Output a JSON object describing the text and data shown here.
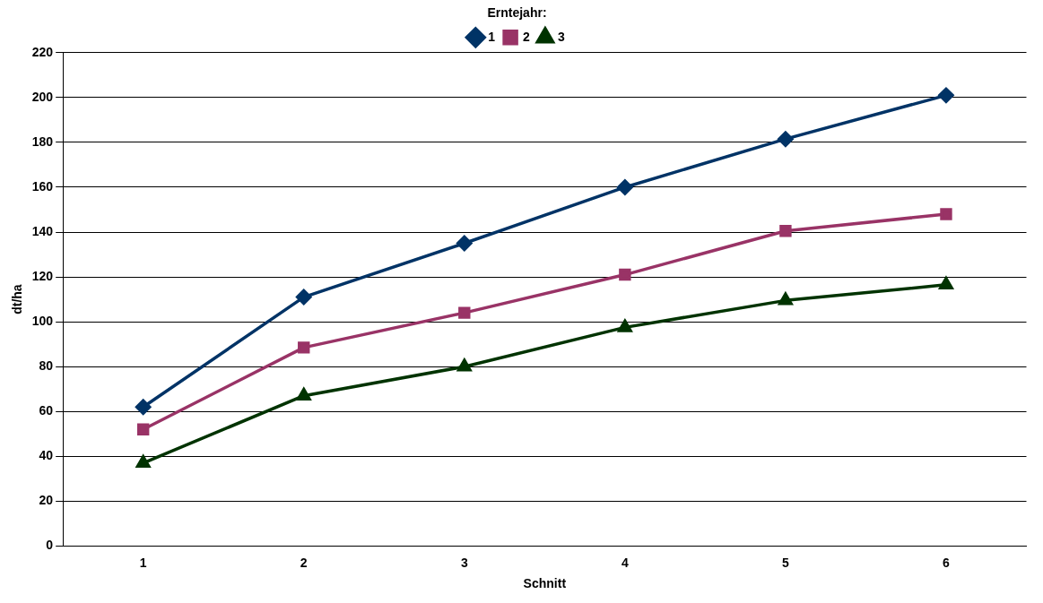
{
  "chart_data": {
    "type": "line",
    "xlabel": "Schnitt",
    "ylabel": "dt/ha",
    "legend_title": "Erntejahr:",
    "legend": "top",
    "grid": "y",
    "categories": [
      "1",
      "2",
      "3",
      "4",
      "5",
      "6"
    ],
    "ylim": [
      0,
      220
    ],
    "yticks": [
      0,
      20,
      40,
      60,
      80,
      100,
      120,
      140,
      160,
      180,
      200,
      220
    ],
    "series": [
      {
        "name": "1",
        "color": "#003366",
        "marker": "diamond",
        "values": [
          62,
          111,
          135,
          160,
          181.5,
          201
        ]
      },
      {
        "name": "2",
        "color": "#993366",
        "marker": "square",
        "values": [
          52,
          88.5,
          104,
          121,
          140.5,
          148
        ]
      },
      {
        "name": "3",
        "color": "#003300",
        "marker": "triangle",
        "values": [
          37,
          67,
          80,
          97.5,
          109.5,
          116.5
        ]
      }
    ]
  }
}
